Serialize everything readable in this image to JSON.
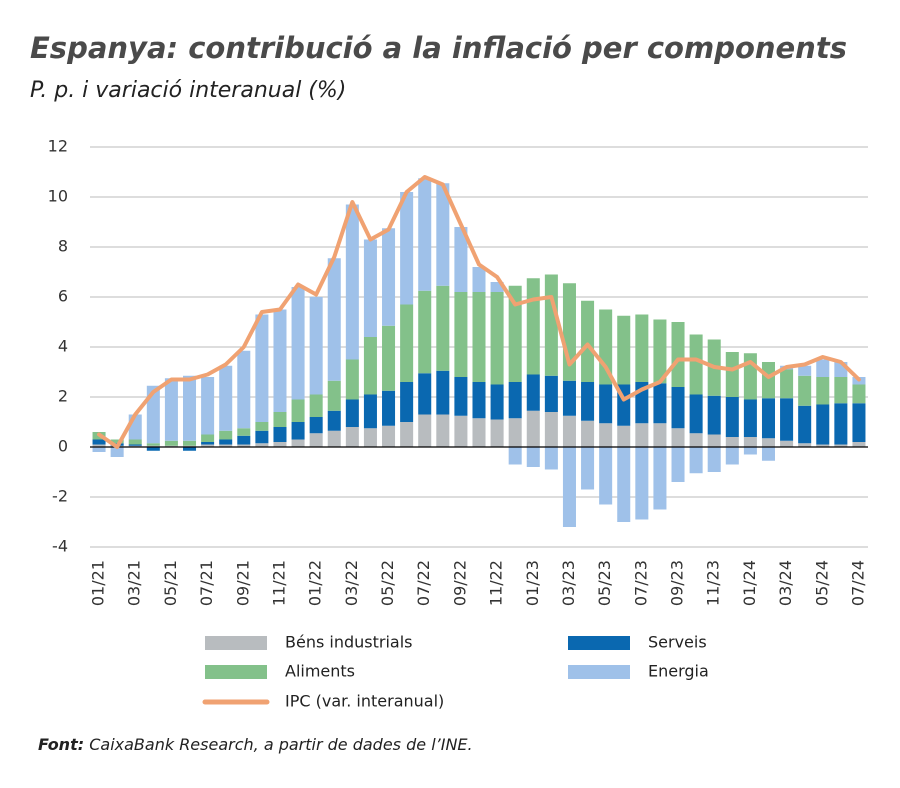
{
  "chart_data": {
    "type": "bar",
    "stacked": true,
    "title": "Espanya: contribució a la inflació per components",
    "subtitle": "P. p. i variació interanual (%)",
    "source_label": "Font:",
    "source_text": "CaixaBank Research, a partir de dades de l’INE.",
    "categories": [
      "01/21",
      null,
      "03/21",
      null,
      "05/21",
      null,
      "07/21",
      null,
      "09/21",
      null,
      "11/21",
      null,
      "01/22",
      null,
      "03/22",
      null,
      "05/22",
      null,
      "07/22",
      null,
      "09/22",
      null,
      "11/22",
      null,
      "01/23",
      null,
      "03/23",
      null,
      "05/23",
      null,
      "07/23",
      null,
      "09/23",
      null,
      "11/23",
      null,
      "01/24",
      null,
      "03/24",
      null,
      "05/24",
      null,
      "07/24"
    ],
    "ylim": [
      -4,
      12
    ],
    "yticks": [
      -4,
      -2,
      0,
      2,
      4,
      6,
      8,
      10,
      12
    ],
    "grid": true,
    "series": [
      {
        "name": "Béns industrials",
        "color": "#b8bcbf",
        "values": [
          0.1,
          0.05,
          0.05,
          0.05,
          0.05,
          0.05,
          0.1,
          0.1,
          0.1,
          0.15,
          0.2,
          0.3,
          0.55,
          0.65,
          0.8,
          0.75,
          0.85,
          1.0,
          1.3,
          1.3,
          1.25,
          1.15,
          1.1,
          1.15,
          1.45,
          1.4,
          1.25,
          1.05,
          0.95,
          0.85,
          0.95,
          0.95,
          0.75,
          0.55,
          0.5,
          0.4,
          0.4,
          0.35,
          0.25,
          0.15,
          0.1,
          0.1,
          0.2
        ]
      },
      {
        "name": "Serveis",
        "color": "#0a68b0",
        "values": [
          0.2,
          0.1,
          0.05,
          -0.15,
          0.0,
          -0.15,
          0.1,
          0.2,
          0.35,
          0.5,
          0.6,
          0.7,
          0.65,
          0.8,
          1.1,
          1.35,
          1.4,
          1.6,
          1.65,
          1.75,
          1.55,
          1.45,
          1.4,
          1.45,
          1.45,
          1.45,
          1.4,
          1.55,
          1.55,
          1.65,
          1.65,
          1.6,
          1.65,
          1.55,
          1.55,
          1.6,
          1.5,
          1.6,
          1.7,
          1.5,
          1.6,
          1.65,
          1.55
        ]
      },
      {
        "name": "Aliments",
        "color": "#83c18a",
        "values": [
          0.3,
          0.15,
          0.2,
          0.1,
          0.2,
          0.2,
          0.3,
          0.35,
          0.3,
          0.35,
          0.6,
          0.9,
          0.9,
          1.2,
          1.6,
          2.3,
          2.6,
          3.1,
          3.3,
          3.4,
          3.4,
          3.6,
          3.7,
          3.85,
          3.85,
          4.05,
          3.9,
          3.25,
          3.0,
          2.75,
          2.7,
          2.55,
          2.6,
          2.4,
          2.25,
          1.8,
          1.85,
          1.45,
          1.15,
          1.2,
          1.1,
          1.05,
          0.75
        ]
      },
      {
        "name": "Energia",
        "color": "#9fc1e9",
        "values": [
          -0.2,
          -0.4,
          1.0,
          2.3,
          2.5,
          2.6,
          2.3,
          2.6,
          3.1,
          4.3,
          4.1,
          4.5,
          3.9,
          4.9,
          6.2,
          3.9,
          3.9,
          4.5,
          4.5,
          4.1,
          2.6,
          1.0,
          0.4,
          -0.7,
          -0.8,
          -0.9,
          -3.2,
          -1.7,
          -2.3,
          -3.0,
          -2.9,
          -2.5,
          -1.4,
          -1.05,
          -1.0,
          -0.7,
          -0.3,
          -0.55,
          0.15,
          0.4,
          0.7,
          0.6,
          0.3
        ]
      },
      {
        "name": "IPC (var. interanual)",
        "type": "line",
        "color": "#f0a272",
        "values": [
          0.5,
          0.0,
          1.3,
          2.2,
          2.7,
          2.7,
          2.9,
          3.3,
          4.0,
          5.4,
          5.5,
          6.5,
          6.1,
          7.6,
          9.8,
          8.3,
          8.7,
          10.2,
          10.8,
          10.5,
          8.9,
          7.3,
          6.8,
          5.7,
          5.9,
          6.0,
          3.3,
          4.1,
          3.2,
          1.9,
          2.3,
          2.6,
          3.5,
          3.5,
          3.2,
          3.1,
          3.4,
          2.8,
          3.2,
          3.3,
          3.6,
          3.4,
          2.7
        ]
      }
    ]
  }
}
